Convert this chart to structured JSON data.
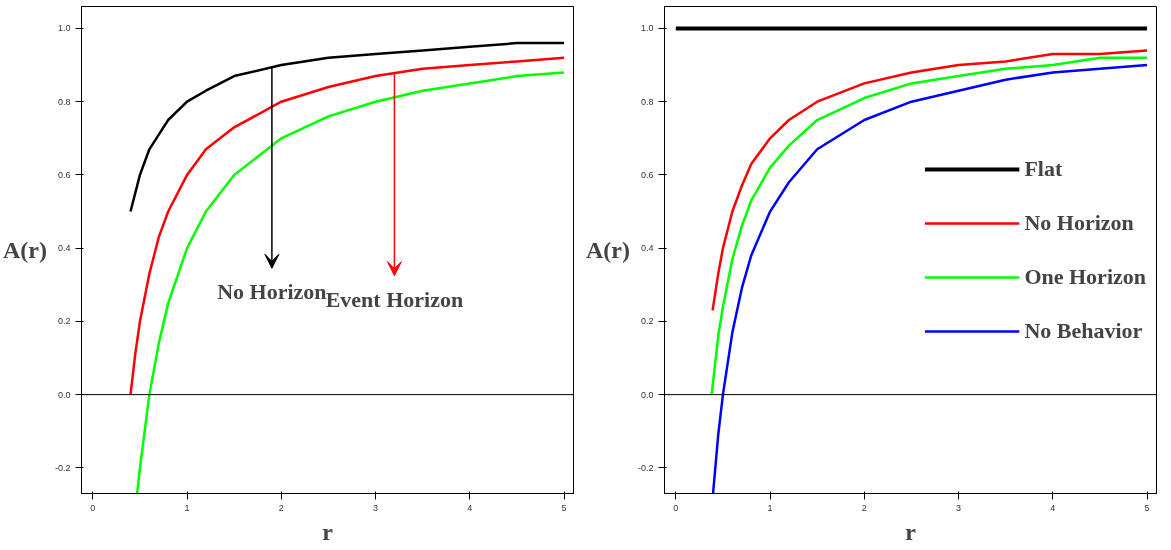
{
  "chart_data": [
    {
      "type": "line",
      "xlabel": "r",
      "ylabel": "A(r)",
      "xlim": [
        -0.12,
        5.1
      ],
      "ylim": [
        -0.27,
        1.06
      ],
      "xticks": [
        0,
        1,
        2,
        3,
        4,
        5
      ],
      "yticks": [
        {
          "value": -0.2,
          "label": "-0.2"
        },
        {
          "value": 0,
          "label": "0.0"
        },
        {
          "value": 0.2,
          "label": "0.2"
        },
        {
          "value": 0.4,
          "label": "0.4"
        },
        {
          "value": 0.6,
          "label": "0.6"
        },
        {
          "value": 0.8,
          "label": "0.8"
        },
        {
          "value": 1,
          "label": "1.0"
        }
      ],
      "grid": false,
      "legend": false,
      "marker": "none",
      "line_style": "solid",
      "ref_lines": [
        {
          "axis": "y",
          "value": 0,
          "color": "#000000"
        }
      ],
      "annotations": [
        {
          "text": "No Horizon",
          "x": 1.9,
          "y": 0.895
        },
        {
          "text": "Event Horizon",
          "x": 3.2,
          "y": 0.875
        }
      ],
      "series": [
        {
          "color": "#000000",
          "x": [
            0.4,
            0.5,
            0.6,
            0.7,
            0.8,
            1,
            1.2,
            1.5,
            2,
            2.5,
            3,
            3.5,
            4,
            4.5,
            5
          ],
          "values": [
            0.5,
            0.6,
            0.67,
            0.71,
            0.75,
            0.8,
            0.83,
            0.87,
            0.9,
            0.92,
            0.93,
            0.94,
            0.95,
            0.96,
            0.96
          ]
        },
        {
          "color": "#ff0000",
          "x": [
            0.4,
            0.45,
            0.5,
            0.6,
            0.7,
            0.8,
            1,
            1.2,
            1.5,
            2,
            2.5,
            3,
            3.5,
            4,
            4.5,
            5
          ],
          "values": [
            0,
            0.11,
            0.2,
            0.33,
            0.43,
            0.5,
            0.6,
            0.67,
            0.73,
            0.8,
            0.84,
            0.87,
            0.89,
            0.9,
            0.91,
            0.92
          ]
        },
        {
          "color": "#00ff00",
          "x": [
            0.47,
            0.5,
            0.6,
            0.7,
            0.8,
            1,
            1.2,
            1.5,
            2,
            2.5,
            3,
            3.5,
            4,
            4.5,
            5
          ],
          "values": [
            -0.27,
            -0.2,
            0,
            0.14,
            0.25,
            0.4,
            0.5,
            0.6,
            0.7,
            0.76,
            0.8,
            0.83,
            0.85,
            0.87,
            0.88
          ]
        }
      ]
    },
    {
      "type": "line",
      "xlabel": "r",
      "ylabel": "A(r)",
      "xlim": [
        -0.12,
        5.1
      ],
      "ylim": [
        -0.27,
        1.06
      ],
      "xticks": [
        0,
        1,
        2,
        3,
        4,
        5
      ],
      "yticks": [
        {
          "value": -0.2,
          "label": "-0.2"
        },
        {
          "value": 0,
          "label": "0.0"
        },
        {
          "value": 0.2,
          "label": "0.2"
        },
        {
          "value": 0.4,
          "label": "0.4"
        },
        {
          "value": 0.6,
          "label": "0.6"
        },
        {
          "value": 0.8,
          "label": "0.8"
        },
        {
          "value": 1,
          "label": "1.0"
        }
      ],
      "grid": false,
      "legend": "right",
      "marker": "none",
      "line_style": "solid",
      "ref_lines": [
        {
          "axis": "y",
          "value": 0,
          "color": "#000000"
        }
      ],
      "series": [
        {
          "name": "Flat",
          "color": "#000000",
          "x": [
            0,
            5
          ],
          "values": [
            1,
            1
          ]
        },
        {
          "name": "No Horizon",
          "color": "#ff0000",
          "x": [
            0.39,
            0.45,
            0.5,
            0.6,
            0.7,
            0.8,
            1,
            1.2,
            1.5,
            2,
            2.5,
            3,
            3.5,
            4,
            4.5,
            5
          ],
          "values": [
            0.23,
            0.33,
            0.4,
            0.5,
            0.57,
            0.63,
            0.7,
            0.75,
            0.8,
            0.85,
            0.88,
            0.9,
            0.91,
            0.93,
            0.93,
            0.94
          ]
        },
        {
          "name": "One Horizon",
          "color": "#00ff00",
          "x": [
            0.38,
            0.45,
            0.5,
            0.6,
            0.7,
            0.8,
            1,
            1.2,
            1.5,
            2,
            2.5,
            3,
            3.5,
            4,
            4.5,
            5
          ],
          "values": [
            0,
            0.16,
            0.24,
            0.37,
            0.46,
            0.53,
            0.62,
            0.68,
            0.75,
            0.81,
            0.85,
            0.87,
            0.89,
            0.9,
            0.92,
            0.92
          ]
        },
        {
          "name": "No Behavior",
          "color": "#0000ff",
          "x": [
            0.395,
            0.45,
            0.5,
            0.6,
            0.7,
            0.8,
            1,
            1.2,
            1.5,
            2,
            2.5,
            3,
            3.5,
            4,
            4.5,
            5
          ],
          "values": [
            -0.27,
            -0.11,
            0,
            0.17,
            0.29,
            0.38,
            0.5,
            0.58,
            0.67,
            0.75,
            0.8,
            0.83,
            0.86,
            0.88,
            0.89,
            0.9
          ]
        }
      ]
    }
  ]
}
